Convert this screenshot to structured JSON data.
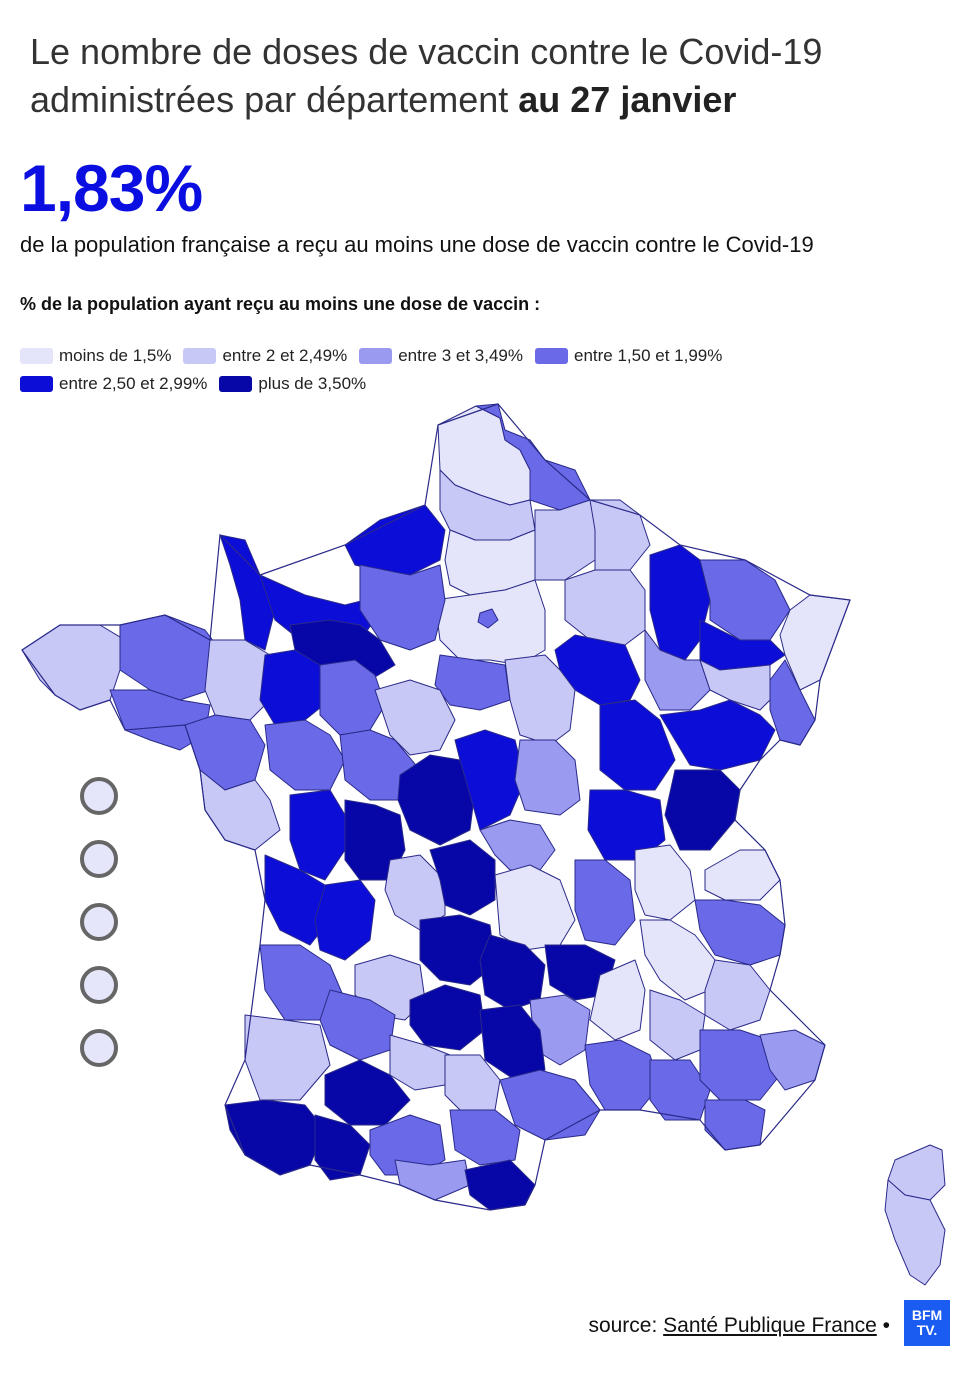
{
  "header": {
    "title_regular": "Le nombre de doses de vaccin contre le Covid-19 administrées par département",
    "title_bold": "au 27 janvier"
  },
  "stat": {
    "value": "1,83%",
    "description": "de la population française a reçu au moins une dose de vaccin contre le Covid-19"
  },
  "legend": {
    "title": "% de la population ayant reçu au moins une dose de vaccin :",
    "items": [
      {
        "label": "moins de 1,5%",
        "color": "#e4e4fb"
      },
      {
        "label": "entre 2 et 2,49%",
        "color": "#c8c8f6"
      },
      {
        "label": "entre 3 et 3,49%",
        "color": "#9a9af0"
      },
      {
        "label": "entre 1,50 et 1,99%",
        "color": "#6a6ae8"
      },
      {
        "label": "entre 2,50 et 2,99%",
        "color": "#0d0dd8"
      },
      {
        "label": "plus de 3,50%",
        "color": "#0707a8"
      }
    ]
  },
  "map": {
    "zoom_controls": [
      "zoom-1",
      "zoom-2",
      "zoom-3",
      "zoom-4",
      "zoom-5"
    ]
  },
  "footer": {
    "source_prefix": "source:",
    "source_link": "Santé Publique France",
    "source_suffix": "•",
    "logo_text_1": "BFM",
    "logo_text_2": "TV."
  }
}
